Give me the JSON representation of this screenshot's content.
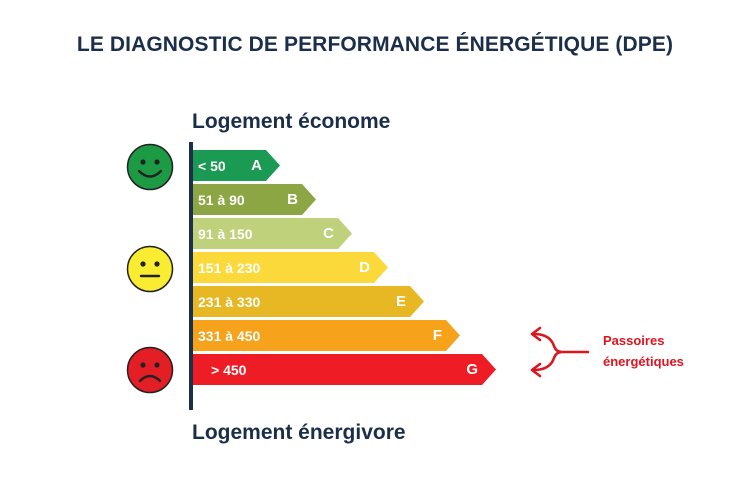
{
  "title": "LE DIAGNOSTIC DE PERFORMANCE ÉNERGÉTIQUE (DPE)",
  "top_label": "Logement économe",
  "bottom_label": "Logement énergivore",
  "classes": [
    {
      "letter": "A",
      "range": "< 50",
      "color": "#1a9a52"
    },
    {
      "letter": "B",
      "range": "51 à 90",
      "color": "#8ca644"
    },
    {
      "letter": "C",
      "range": "91 à 150",
      "color": "#bfd17a"
    },
    {
      "letter": "D",
      "range": "151 à 230",
      "color": "#fbd93a"
    },
    {
      "letter": "E",
      "range": "231 à 330",
      "color": "#e8b824"
    },
    {
      "letter": "F",
      "range": "331 à 450",
      "color": "#f6a21a"
    },
    {
      "letter": "G",
      "range": "> 450",
      "color": "#ee1c24"
    }
  ],
  "smileys": [
    {
      "mood": "happy",
      "color": "#1d9b44"
    },
    {
      "mood": "neutral",
      "color": "#f9ec31"
    },
    {
      "mood": "sad",
      "color": "#e41e25"
    }
  ],
  "annotation": {
    "line1": "Passoires",
    "line2": "énergétiques",
    "color": "#e0141e"
  }
}
